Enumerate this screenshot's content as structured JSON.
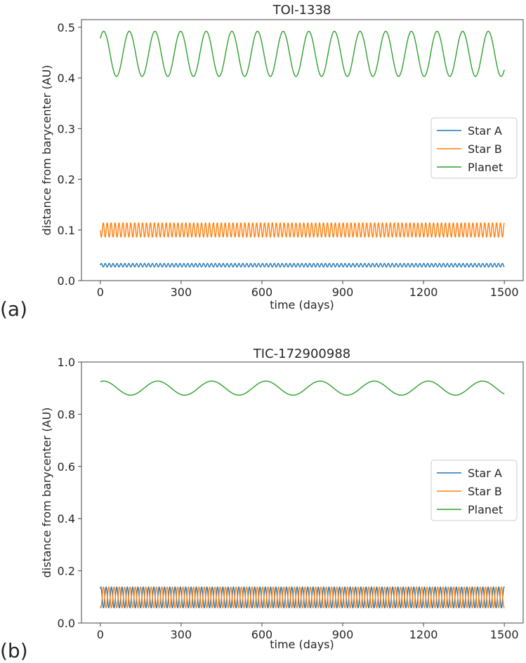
{
  "chart_data": [
    {
      "type": "line",
      "panel_label": "(a)",
      "title": "TOI-1338",
      "xlabel": "time (days)",
      "ylabel": "distance from barycenter (AU)",
      "xlim": [
        -70,
        1570
      ],
      "ylim": [
        0,
        0.515
      ],
      "xticks": [
        0,
        300,
        600,
        900,
        1200,
        1500
      ],
      "xtick_labels": [
        "0",
        "300",
        "600",
        "900",
        "1200",
        "1500"
      ],
      "yticks": [
        0,
        0.1,
        0.2,
        0.3,
        0.4,
        0.5
      ],
      "ytick_labels": [
        "0.0",
        "0.1",
        "0.2",
        "0.3",
        "0.4",
        "0.5"
      ],
      "grid": false,
      "legend_position": "center-right",
      "series": [
        {
          "name": "Star A",
          "color": "#1f77b4",
          "shape": "sinusoid",
          "t_range": [
            0,
            1500
          ],
          "mean": 0.0305,
          "amplitude": 0.0035,
          "period_days": 14.6,
          "phase": 0.0
        },
        {
          "name": "Star B",
          "color": "#ff7f0e",
          "shape": "sinusoid",
          "t_range": [
            0,
            1500
          ],
          "mean": 0.1,
          "amplitude": 0.014,
          "period_days": 14.6,
          "phase": 3.1416
        },
        {
          "name": "Planet",
          "color": "#2ca02c",
          "shape": "sinusoid",
          "t_range": [
            0,
            1500
          ],
          "mean": 0.4475,
          "amplitude": 0.0445,
          "period_days": 95.2,
          "phase": 0.75
        }
      ]
    },
    {
      "type": "line",
      "panel_label": "(b)",
      "title": "TIC-172900988",
      "xlabel": "time (days)",
      "ylabel": "distance from barycenter (AU)",
      "xlim": [
        -70,
        1570
      ],
      "ylim": [
        0,
        1.0
      ],
      "xticks": [
        0,
        300,
        600,
        900,
        1200,
        1500
      ],
      "xtick_labels": [
        "0",
        "300",
        "600",
        "900",
        "1200",
        "1500"
      ],
      "yticks": [
        0,
        0.2,
        0.4,
        0.6,
        0.8,
        1.0
      ],
      "ytick_labels": [
        "0.0",
        "0.2",
        "0.4",
        "0.6",
        "0.8",
        "1.0"
      ],
      "grid": false,
      "legend_position": "center-right",
      "series": [
        {
          "name": "Star A",
          "color": "#1f77b4",
          "shape": "sinusoid",
          "t_range": [
            0,
            1500
          ],
          "mean": 0.098,
          "amplitude": 0.04,
          "period_days": 19.7,
          "phase": 1.0
        },
        {
          "name": "Star B",
          "color": "#ff7f0e",
          "shape": "sinusoid",
          "t_range": [
            0,
            1500
          ],
          "mean": 0.098,
          "amplitude": 0.04,
          "period_days": 19.7,
          "phase": 4.1416
        },
        {
          "name": "Planet",
          "color": "#2ca02c",
          "shape": "sinusoid",
          "t_range": [
            0,
            1500
          ],
          "mean": 0.9,
          "amplitude": 0.027,
          "period_days": 201,
          "phase": 1.2
        }
      ]
    }
  ]
}
